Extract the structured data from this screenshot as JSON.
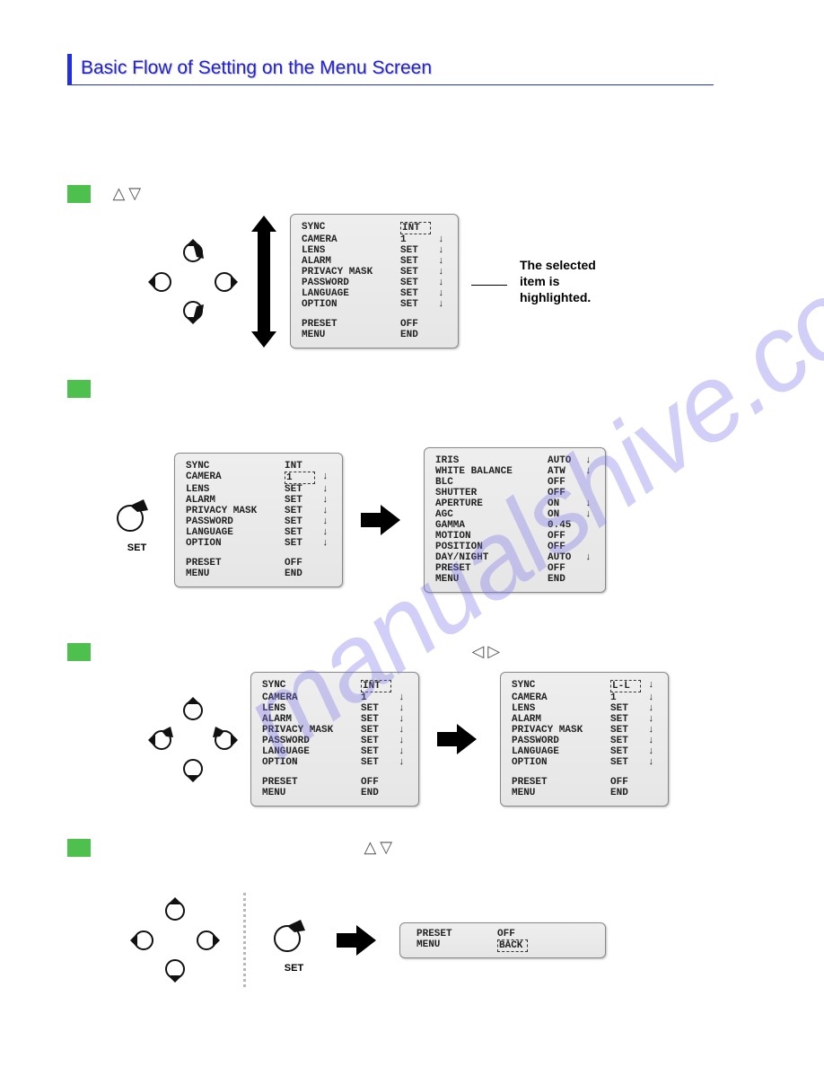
{
  "title": "Basic Flow of Setting on the Menu Screen",
  "watermark": "manualshive.com",
  "arrow_symbols": {
    "ud": "△▽",
    "lr": "◁▷"
  },
  "set_label": "SET",
  "callout": "The selected item is highlighted.",
  "colors": {
    "accent": "#4ec04e",
    "title": "#2020d8",
    "panel_bg": "#e8e8e8",
    "panel_border": "#888888",
    "watermark": "#7a74e8"
  },
  "mark": "↓",
  "panel_main": {
    "rows": [
      {
        "k": "SYNC",
        "v": "INT",
        "m": "",
        "sel": true
      },
      {
        "k": "CAMERA",
        "v": "1",
        "m": "↓"
      },
      {
        "k": "LENS",
        "v": "SET",
        "m": "↓"
      },
      {
        "k": "ALARM",
        "v": "SET",
        "m": "↓"
      },
      {
        "k": "PRIVACY MASK",
        "v": "SET",
        "m": "↓"
      },
      {
        "k": "PASSWORD",
        "v": "SET",
        "m": "↓"
      },
      {
        "k": "LANGUAGE",
        "v": "SET",
        "m": "↓"
      },
      {
        "k": "OPTION",
        "v": "SET",
        "m": "↓"
      }
    ],
    "tail": [
      {
        "k": "PRESET",
        "v": "OFF"
      },
      {
        "k": "MENU",
        "v": "END"
      }
    ]
  },
  "panel_cameraSel": {
    "rows": [
      {
        "k": "SYNC",
        "v": "INT",
        "m": ""
      },
      {
        "k": "CAMERA",
        "v": "1",
        "m": "↓",
        "sel": true
      },
      {
        "k": "LENS",
        "v": "SET",
        "m": "↓"
      },
      {
        "k": "ALARM",
        "v": "SET",
        "m": "↓"
      },
      {
        "k": "PRIVACY MASK",
        "v": "SET",
        "m": "↓"
      },
      {
        "k": "PASSWORD",
        "v": "SET",
        "m": "↓"
      },
      {
        "k": "LANGUAGE",
        "v": "SET",
        "m": "↓"
      },
      {
        "k": "OPTION",
        "v": "SET",
        "m": "↓"
      }
    ],
    "tail": [
      {
        "k": "PRESET",
        "v": "OFF"
      },
      {
        "k": "MENU",
        "v": "END"
      }
    ]
  },
  "panel_sub": {
    "rows": [
      {
        "k": "IRIS",
        "v": "AUTO",
        "m": "↓"
      },
      {
        "k": "WHITE BALANCE",
        "v": "ATW",
        "m": "↓"
      },
      {
        "k": "BLC",
        "v": "OFF",
        "m": ""
      },
      {
        "k": "SHUTTER",
        "v": "OFF",
        "m": ""
      },
      {
        "k": "APERTURE",
        "v": "ON",
        "m": "↓"
      },
      {
        "k": "AGC",
        "v": "ON",
        "m": "↓"
      },
      {
        "k": "GAMMA",
        "v": "0.45",
        "m": ""
      },
      {
        "k": "MOTION",
        "v": "OFF",
        "m": ""
      },
      {
        "k": "POSITION",
        "v": "OFF",
        "m": ""
      },
      {
        "k": "DAY/NIGHT",
        "v": "AUTO",
        "m": "↓"
      },
      {
        "k": "PRESET",
        "v": "OFF",
        "m": ""
      },
      {
        "k": "MENU",
        "v": "END",
        "m": ""
      }
    ]
  },
  "panel_ll": {
    "rows": [
      {
        "k": "SYNC",
        "v": "L-L",
        "m": "↓",
        "sel": true
      },
      {
        "k": "CAMERA",
        "v": "1",
        "m": "↓"
      },
      {
        "k": "LENS",
        "v": "SET",
        "m": "↓"
      },
      {
        "k": "ALARM",
        "v": "SET",
        "m": "↓"
      },
      {
        "k": "PRIVACY MASK",
        "v": "SET",
        "m": "↓"
      },
      {
        "k": "PASSWORD",
        "v": "SET",
        "m": "↓"
      },
      {
        "k": "LANGUAGE",
        "v": "SET",
        "m": "↓"
      },
      {
        "k": "OPTION",
        "v": "SET",
        "m": "↓"
      }
    ],
    "tail": [
      {
        "k": "PRESET",
        "v": "OFF"
      },
      {
        "k": "MENU",
        "v": "END"
      }
    ]
  },
  "panel_back": {
    "rows": [
      {
        "k": "PRESET",
        "v": "OFF"
      },
      {
        "k": "MENU",
        "v": "BACK",
        "sel": true
      }
    ]
  }
}
